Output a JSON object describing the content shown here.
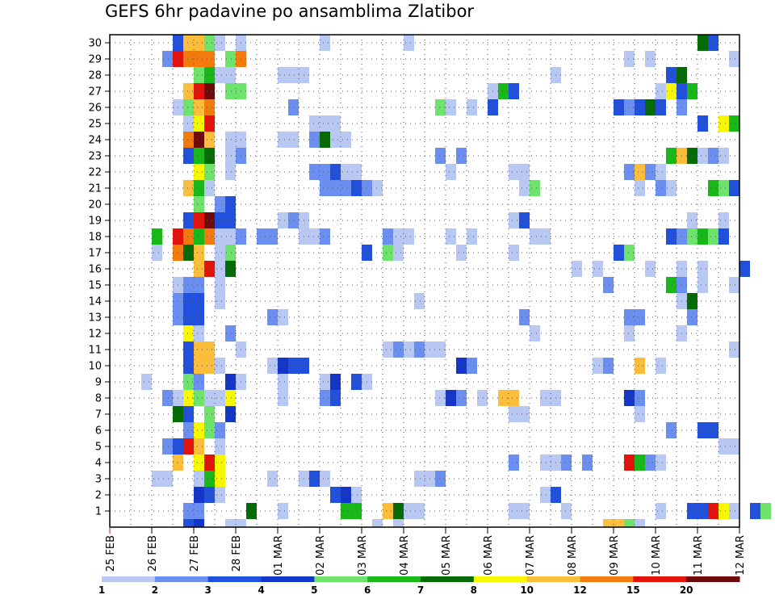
{
  "chart_data": {
    "type": "heatmap",
    "title": "GEFS 6hr padavine po ansamblima Zlatibor",
    "xlabel": "",
    "ylabel": "",
    "x_ticks": [
      "25 FEB",
      "26 FEB",
      "27 FEB",
      "28 FEB",
      "01 MAR",
      "02 MAR",
      "03 MAR",
      "04 MAR",
      "05 MAR",
      "06 MAR",
      "07 MAR",
      "08 MAR",
      "09 MAR",
      "10 MAR",
      "11 MAR",
      "12 MAR"
    ],
    "y_ticks": [
      1,
      2,
      3,
      4,
      5,
      6,
      7,
      8,
      9,
      10,
      11,
      12,
      13,
      14,
      15,
      16,
      17,
      18,
      19,
      20,
      21,
      22,
      23,
      24,
      25,
      26,
      27,
      28,
      29,
      30
    ],
    "xlim": [
      "25 FEB 00Z",
      "12 MAR 00Z"
    ],
    "time_step_hours": 6,
    "ylim": [
      0,
      30
    ],
    "grid": true,
    "colorbar": {
      "placement": "bottom",
      "labels": [
        "1",
        "2",
        "3",
        "4",
        "5",
        "6",
        "7",
        "8",
        "10",
        "12",
        "15",
        "20"
      ],
      "colors": [
        "#b9c8f2",
        "#6a8ff0",
        "#2150dc",
        "#1436c8",
        "#6de36b",
        "#17b817",
        "#056b05",
        "#f7f700",
        "#fbbe3c",
        "#f57a0d",
        "#e3130c",
        "#6e0a0a"
      ]
    },
    "cells": [
      [
        1,
        7,
        2
      ],
      [
        1,
        8,
        2
      ],
      [
        1,
        13,
        7
      ],
      [
        1,
        16,
        1
      ],
      [
        1,
        22,
        6
      ],
      [
        1,
        23,
        6
      ],
      [
        1,
        27,
        7
      ],
      [
        1,
        26,
        9
      ],
      [
        1,
        28,
        1
      ],
      [
        1,
        29,
        1
      ],
      [
        1,
        38,
        1
      ],
      [
        1,
        39,
        1
      ],
      [
        1,
        55,
        3
      ],
      [
        1,
        56,
        3
      ],
      [
        1,
        57,
        11
      ],
      [
        1,
        58,
        8
      ],
      [
        1,
        59,
        1
      ],
      [
        1,
        61,
        3
      ],
      [
        1,
        62,
        5
      ],
      [
        1,
        52,
        1
      ],
      [
        1,
        43,
        1
      ],
      [
        2,
        8,
        4
      ],
      [
        2,
        9,
        3
      ],
      [
        2,
        10,
        1
      ],
      [
        2,
        21,
        3
      ],
      [
        2,
        22,
        4
      ],
      [
        2,
        23,
        1
      ],
      [
        2,
        41,
        1
      ],
      [
        2,
        42,
        3
      ],
      [
        3,
        4,
        1
      ],
      [
        3,
        5,
        1
      ],
      [
        3,
        8,
        1
      ],
      [
        3,
        9,
        6
      ],
      [
        3,
        10,
        8
      ],
      [
        3,
        15,
        1
      ],
      [
        3,
        18,
        1
      ],
      [
        3,
        19,
        3
      ],
      [
        3,
        20,
        1
      ],
      [
        3,
        29,
        1
      ],
      [
        3,
        30,
        1
      ],
      [
        3,
        31,
        2
      ],
      [
        4,
        6,
        9
      ],
      [
        4,
        8,
        8
      ],
      [
        4,
        9,
        11
      ],
      [
        4,
        10,
        8
      ],
      [
        4,
        38,
        2
      ],
      [
        4,
        41,
        1
      ],
      [
        4,
        42,
        1
      ],
      [
        4,
        43,
        2
      ],
      [
        4,
        45,
        2
      ],
      [
        4,
        49,
        11
      ],
      [
        4,
        50,
        6
      ],
      [
        4,
        51,
        2
      ],
      [
        4,
        52,
        1
      ],
      [
        5,
        5,
        2
      ],
      [
        5,
        6,
        3
      ],
      [
        5,
        7,
        11
      ],
      [
        5,
        8,
        9
      ],
      [
        5,
        10,
        1
      ],
      [
        5,
        58,
        1
      ],
      [
        5,
        59,
        1
      ],
      [
        6,
        7,
        2
      ],
      [
        6,
        8,
        8
      ],
      [
        6,
        9,
        5
      ],
      [
        6,
        10,
        2
      ],
      [
        6,
        53,
        2
      ],
      [
        6,
        56,
        3
      ],
      [
        6,
        57,
        3
      ],
      [
        7,
        6,
        7
      ],
      [
        7,
        7,
        3
      ],
      [
        7,
        9,
        5
      ],
      [
        7,
        11,
        4
      ],
      [
        7,
        38,
        1
      ],
      [
        7,
        39,
        1
      ],
      [
        7,
        50,
        1
      ],
      [
        8,
        5,
        2
      ],
      [
        8,
        6,
        1
      ],
      [
        8,
        7,
        8
      ],
      [
        8,
        8,
        5
      ],
      [
        8,
        9,
        1
      ],
      [
        8,
        10,
        1
      ],
      [
        8,
        11,
        8
      ],
      [
        8,
        16,
        1
      ],
      [
        8,
        20,
        2
      ],
      [
        8,
        21,
        3
      ],
      [
        8,
        31,
        1
      ],
      [
        8,
        32,
        4
      ],
      [
        8,
        33,
        2
      ],
      [
        8,
        35,
        1
      ],
      [
        8,
        37,
        9
      ],
      [
        8,
        38,
        9
      ],
      [
        8,
        41,
        1
      ],
      [
        8,
        42,
        1
      ],
      [
        8,
        49,
        4
      ],
      [
        8,
        50,
        2
      ],
      [
        9,
        3,
        1
      ],
      [
        9,
        7,
        5
      ],
      [
        9,
        8,
        2
      ],
      [
        9,
        11,
        4
      ],
      [
        9,
        12,
        1
      ],
      [
        9,
        16,
        1
      ],
      [
        9,
        20,
        1
      ],
      [
        9,
        21,
        4
      ],
      [
        9,
        23,
        3
      ],
      [
        9,
        24,
        1
      ],
      [
        10,
        7,
        3
      ],
      [
        10,
        8,
        9
      ],
      [
        10,
        9,
        9
      ],
      [
        10,
        10,
        1
      ],
      [
        10,
        15,
        1
      ],
      [
        10,
        16,
        4
      ],
      [
        10,
        17,
        3
      ],
      [
        10,
        18,
        3
      ],
      [
        10,
        33,
        4
      ],
      [
        10,
        34,
        2
      ],
      [
        10,
        46,
        1
      ],
      [
        10,
        47,
        2
      ],
      [
        10,
        50,
        9
      ],
      [
        10,
        52,
        1
      ],
      [
        11,
        7,
        3
      ],
      [
        11,
        8,
        9
      ],
      [
        11,
        9,
        9
      ],
      [
        11,
        12,
        1
      ],
      [
        11,
        26,
        1
      ],
      [
        11,
        27,
        2
      ],
      [
        11,
        28,
        1
      ],
      [
        11,
        29,
        2
      ],
      [
        11,
        30,
        1
      ],
      [
        11,
        31,
        1
      ],
      [
        11,
        59,
        1
      ],
      [
        12,
        7,
        8
      ],
      [
        12,
        8,
        1
      ],
      [
        12,
        11,
        2
      ],
      [
        12,
        40,
        1
      ],
      [
        12,
        49,
        1
      ],
      [
        12,
        54,
        1
      ],
      [
        13,
        6,
        2
      ],
      [
        13,
        7,
        3
      ],
      [
        13,
        8,
        3
      ],
      [
        13,
        15,
        2
      ],
      [
        13,
        16,
        1
      ],
      [
        13,
        39,
        2
      ],
      [
        13,
        49,
        2
      ],
      [
        13,
        50,
        2
      ],
      [
        13,
        55,
        2
      ],
      [
        14,
        6,
        2
      ],
      [
        14,
        7,
        3
      ],
      [
        14,
        8,
        3
      ],
      [
        14,
        10,
        1
      ],
      [
        14,
        29,
        1
      ],
      [
        14,
        54,
        1
      ],
      [
        14,
        55,
        7
      ],
      [
        15,
        6,
        1
      ],
      [
        15,
        7,
        2
      ],
      [
        15,
        8,
        2
      ],
      [
        15,
        10,
        1
      ],
      [
        15,
        47,
        2
      ],
      [
        15,
        53,
        6
      ],
      [
        15,
        54,
        2
      ],
      [
        15,
        56,
        1
      ],
      [
        15,
        59,
        1
      ],
      [
        16,
        8,
        9
      ],
      [
        16,
        9,
        11
      ],
      [
        16,
        10,
        1
      ],
      [
        16,
        11,
        7
      ],
      [
        16,
        44,
        1
      ],
      [
        16,
        46,
        1
      ],
      [
        16,
        51,
        1
      ],
      [
        16,
        54,
        1
      ],
      [
        16,
        56,
        1
      ],
      [
        16,
        60,
        3
      ],
      [
        17,
        4,
        1
      ],
      [
        17,
        6,
        10
      ],
      [
        17,
        7,
        7
      ],
      [
        17,
        8,
        9
      ],
      [
        17,
        10,
        1
      ],
      [
        17,
        11,
        5
      ],
      [
        17,
        24,
        3
      ],
      [
        17,
        26,
        5
      ],
      [
        17,
        27,
        1
      ],
      [
        17,
        33,
        1
      ],
      [
        17,
        38,
        1
      ],
      [
        17,
        48,
        3
      ],
      [
        17,
        49,
        5
      ],
      [
        18,
        4,
        6
      ],
      [
        18,
        6,
        11
      ],
      [
        18,
        7,
        10
      ],
      [
        18,
        8,
        6
      ],
      [
        18,
        9,
        10
      ],
      [
        18,
        10,
        1
      ],
      [
        18,
        11,
        1
      ],
      [
        18,
        12,
        2
      ],
      [
        18,
        14,
        2
      ],
      [
        18,
        15,
        2
      ],
      [
        18,
        18,
        1
      ],
      [
        18,
        19,
        1
      ],
      [
        18,
        20,
        2
      ],
      [
        18,
        26,
        2
      ],
      [
        18,
        27,
        1
      ],
      [
        18,
        28,
        1
      ],
      [
        18,
        32,
        1
      ],
      [
        18,
        34,
        1
      ],
      [
        18,
        40,
        1
      ],
      [
        18,
        41,
        1
      ],
      [
        18,
        53,
        3
      ],
      [
        18,
        54,
        2
      ],
      [
        18,
        55,
        5
      ],
      [
        18,
        56,
        6
      ],
      [
        18,
        57,
        5
      ],
      [
        18,
        58,
        3
      ],
      [
        19,
        7,
        3
      ],
      [
        19,
        8,
        11
      ],
      [
        19,
        9,
        12
      ],
      [
        19,
        10,
        3
      ],
      [
        19,
        11,
        3
      ],
      [
        19,
        16,
        1
      ],
      [
        19,
        17,
        2
      ],
      [
        19,
        18,
        1
      ],
      [
        19,
        38,
        1
      ],
      [
        19,
        39,
        3
      ],
      [
        19,
        55,
        1
      ],
      [
        19,
        58,
        1
      ],
      [
        20,
        8,
        5
      ],
      [
        20,
        10,
        2
      ],
      [
        20,
        11,
        3
      ],
      [
        21,
        7,
        9
      ],
      [
        21,
        8,
        6
      ],
      [
        21,
        9,
        1
      ],
      [
        21,
        20,
        2
      ],
      [
        21,
        21,
        2
      ],
      [
        21,
        22,
        2
      ],
      [
        21,
        23,
        3
      ],
      [
        21,
        24,
        2
      ],
      [
        21,
        25,
        1
      ],
      [
        21,
        39,
        1
      ],
      [
        21,
        40,
        5
      ],
      [
        21,
        50,
        1
      ],
      [
        21,
        52,
        2
      ],
      [
        21,
        53,
        1
      ],
      [
        21,
        57,
        6
      ],
      [
        21,
        58,
        5
      ],
      [
        21,
        59,
        3
      ],
      [
        22,
        8,
        8
      ],
      [
        22,
        9,
        5
      ],
      [
        22,
        11,
        1
      ],
      [
        22,
        19,
        2
      ],
      [
        22,
        20,
        2
      ],
      [
        22,
        21,
        3
      ],
      [
        22,
        22,
        1
      ],
      [
        22,
        23,
        1
      ],
      [
        22,
        32,
        1
      ],
      [
        22,
        38,
        1
      ],
      [
        22,
        39,
        1
      ],
      [
        22,
        49,
        2
      ],
      [
        22,
        50,
        9
      ],
      [
        22,
        51,
        2
      ],
      [
        22,
        52,
        1
      ],
      [
        23,
        7,
        3
      ],
      [
        23,
        8,
        6
      ],
      [
        23,
        9,
        7
      ],
      [
        23,
        11,
        1
      ],
      [
        23,
        12,
        2
      ],
      [
        23,
        31,
        2
      ],
      [
        23,
        33,
        2
      ],
      [
        23,
        53,
        6
      ],
      [
        23,
        54,
        9
      ],
      [
        23,
        55,
        7
      ],
      [
        23,
        56,
        1
      ],
      [
        23,
        57,
        2
      ],
      [
        23,
        58,
        1
      ],
      [
        24,
        7,
        10
      ],
      [
        24,
        8,
        12
      ],
      [
        24,
        9,
        9
      ],
      [
        24,
        11,
        1
      ],
      [
        24,
        12,
        1
      ],
      [
        24,
        16,
        1
      ],
      [
        24,
        17,
        1
      ],
      [
        24,
        19,
        2
      ],
      [
        24,
        20,
        7
      ],
      [
        24,
        21,
        1
      ],
      [
        24,
        22,
        1
      ],
      [
        25,
        7,
        1
      ],
      [
        25,
        8,
        8
      ],
      [
        25,
        9,
        11
      ],
      [
        25,
        19,
        1
      ],
      [
        25,
        20,
        1
      ],
      [
        25,
        21,
        1
      ],
      [
        25,
        56,
        3
      ],
      [
        25,
        58,
        8
      ],
      [
        25,
        59,
        6
      ],
      [
        26,
        6,
        1
      ],
      [
        26,
        7,
        5
      ],
      [
        26,
        8,
        9
      ],
      [
        26,
        9,
        10
      ],
      [
        26,
        17,
        2
      ],
      [
        26,
        31,
        5
      ],
      [
        26,
        32,
        1
      ],
      [
        26,
        34,
        1
      ],
      [
        26,
        36,
        3
      ],
      [
        26,
        48,
        3
      ],
      [
        26,
        49,
        2
      ],
      [
        26,
        50,
        3
      ],
      [
        26,
        51,
        7
      ],
      [
        26,
        52,
        3
      ],
      [
        26,
        54,
        2
      ],
      [
        27,
        7,
        9
      ],
      [
        27,
        8,
        11
      ],
      [
        27,
        9,
        12
      ],
      [
        27,
        11,
        5
      ],
      [
        27,
        12,
        5
      ],
      [
        27,
        36,
        1
      ],
      [
        27,
        37,
        6
      ],
      [
        27,
        38,
        3
      ],
      [
        27,
        52,
        1
      ],
      [
        27,
        53,
        8
      ],
      [
        27,
        54,
        3
      ],
      [
        27,
        55,
        6
      ],
      [
        28,
        8,
        5
      ],
      [
        28,
        9,
        6
      ],
      [
        28,
        10,
        1
      ],
      [
        28,
        11,
        1
      ],
      [
        28,
        16,
        1
      ],
      [
        28,
        17,
        1
      ],
      [
        28,
        18,
        1
      ],
      [
        28,
        42,
        1
      ],
      [
        28,
        53,
        3
      ],
      [
        28,
        54,
        7
      ],
      [
        29,
        5,
        2
      ],
      [
        29,
        6,
        11
      ],
      [
        29,
        7,
        10
      ],
      [
        29,
        8,
        10
      ],
      [
        29,
        9,
        10
      ],
      [
        29,
        11,
        5
      ],
      [
        29,
        12,
        10
      ],
      [
        29,
        49,
        1
      ],
      [
        29,
        51,
        1
      ],
      [
        29,
        59,
        1
      ],
      [
        30,
        6,
        3
      ],
      [
        30,
        7,
        9
      ],
      [
        30,
        8,
        9
      ],
      [
        30,
        9,
        5
      ],
      [
        30,
        10,
        1
      ],
      [
        30,
        12,
        1
      ],
      [
        30,
        20,
        1
      ],
      [
        30,
        28,
        1
      ],
      [
        30,
        56,
        7
      ],
      [
        30,
        57,
        3
      ],
      [
        0,
        7,
        3
      ],
      [
        0,
        8,
        4
      ],
      [
        0,
        11,
        1
      ],
      [
        0,
        12,
        1
      ],
      [
        0,
        25,
        1
      ],
      [
        0,
        27,
        1
      ],
      [
        0,
        47,
        9
      ],
      [
        0,
        48,
        9
      ],
      [
        0,
        49,
        5
      ],
      [
        0,
        50,
        1
      ]
    ]
  }
}
